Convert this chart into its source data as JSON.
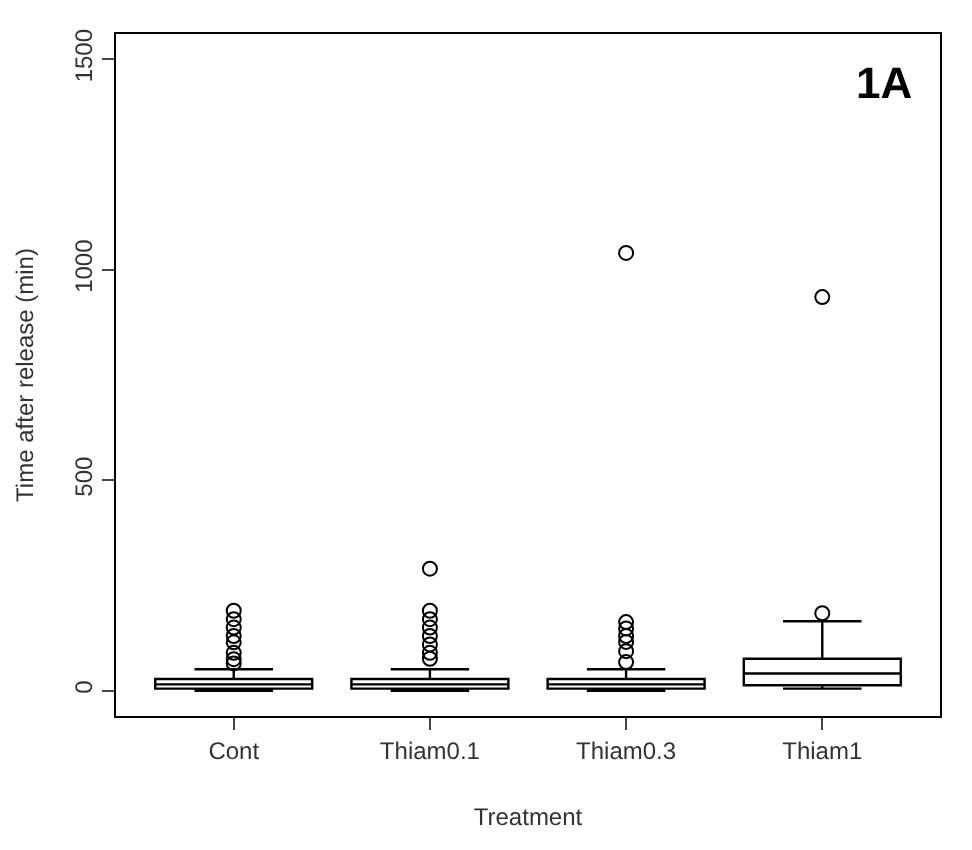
{
  "chart_data": {
    "type": "box",
    "xlabel": "Treatment",
    "ylabel": "Time after release (min)",
    "categories": [
      "Cont",
      "Thiam0.1",
      "Thiam0.3",
      "Thiam1"
    ],
    "boxes": [
      {
        "low": 0,
        "q1": 5,
        "median": 15,
        "q3": 28,
        "high": 51,
        "outliers": [
          65,
          75,
          90,
          115,
          130,
          150,
          170,
          190
        ]
      },
      {
        "low": 0,
        "q1": 5,
        "median": 15,
        "q3": 28,
        "high": 51,
        "outliers": [
          76,
          90,
          110,
          130,
          150,
          170,
          190,
          290
        ]
      },
      {
        "low": 0,
        "q1": 5,
        "median": 15,
        "q3": 28,
        "high": 51,
        "outliers": [
          68,
          94,
          116,
          130,
          148,
          163,
          1040
        ]
      },
      {
        "low": 5,
        "q1": 13,
        "median": 41,
        "q3": 76,
        "high": 165,
        "outliers": [
          184,
          935
        ]
      }
    ],
    "color": "#000000",
    "ylim": [
      -60,
      1560
    ],
    "yticks": [
      0,
      500,
      1000,
      1500
    ],
    "annotations": [
      "1A"
    ]
  }
}
